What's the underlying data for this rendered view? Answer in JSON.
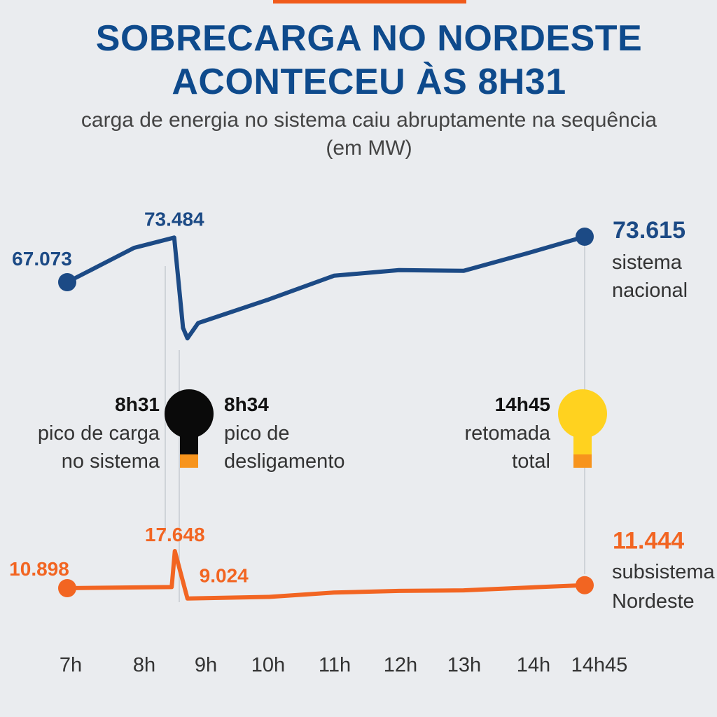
{
  "header": {
    "title_line1": "SOBRECARGA NO NORDESTE",
    "title_line2": "ACONTECEU ÀS 8H31",
    "subtitle_line1": "carga de energia no sistema caiu abruptamente na sequência",
    "subtitle_line2": "(em MW)"
  },
  "colors": {
    "nacional": "#1c4a85",
    "nordeste": "#f26522",
    "bulb_off": "#0a0a0a",
    "bulb_on": "#ffd21f",
    "bulb_base": "#f7941d"
  },
  "annotations": [
    {
      "time": "8h31",
      "line1": "pico de carga",
      "line2": "no sistema",
      "bulb": "none"
    },
    {
      "time": "8h34",
      "line1": "pico de",
      "line2": "desligamento",
      "bulb": "off"
    },
    {
      "time": "14h45",
      "line1": "retomada",
      "line2": "total",
      "bulb": "on"
    }
  ],
  "chart_data": {
    "type": "line",
    "x_tick_labels": [
      "7h",
      "8h",
      "9h",
      "10h",
      "11h",
      "12h",
      "13h",
      "14h",
      "14h45"
    ],
    "series": [
      {
        "name": "sistema nacional",
        "name_line1": "sistema",
        "name_line2": "nacional",
        "points": [
          {
            "t": 7.0,
            "v": 67073
          },
          {
            "t": 7.9,
            "v": 72000
          },
          {
            "t": 8.52,
            "v": 73484
          },
          {
            "t": 8.66,
            "v": 60500
          },
          {
            "t": 8.73,
            "v": 59000
          },
          {
            "t": 8.9,
            "v": 61200
          },
          {
            "t": 10.0,
            "v": 64600
          },
          {
            "t": 11.0,
            "v": 68000
          },
          {
            "t": 12.0,
            "v": 68800
          },
          {
            "t": 13.0,
            "v": 68700
          },
          {
            "t": 14.0,
            "v": 71200
          },
          {
            "t": 14.75,
            "v": 73615
          }
        ],
        "labels": [
          {
            "t": 7.0,
            "text": "67.073"
          },
          {
            "t": 8.52,
            "text": "73.484"
          },
          {
            "t": 14.75,
            "text": "73.615"
          }
        ]
      },
      {
        "name": "subsistema Nordeste",
        "name_line1": "subsistema",
        "name_line2": "Nordeste",
        "points": [
          {
            "t": 7.0,
            "v": 10898
          },
          {
            "t": 8.48,
            "v": 11100
          },
          {
            "t": 8.53,
            "v": 17648
          },
          {
            "t": 8.73,
            "v": 9024
          },
          {
            "t": 10.0,
            "v": 9300
          },
          {
            "t": 11.0,
            "v": 10100
          },
          {
            "t": 12.0,
            "v": 10400
          },
          {
            "t": 13.0,
            "v": 10500
          },
          {
            "t": 14.0,
            "v": 11000
          },
          {
            "t": 14.75,
            "v": 11444
          }
        ],
        "labels": [
          {
            "t": 7.0,
            "text": "10.898"
          },
          {
            "t": 8.53,
            "text": "17.648"
          },
          {
            "t": 8.73,
            "text": "9.024"
          },
          {
            "t": 14.75,
            "text": "11.444"
          }
        ]
      }
    ]
  }
}
